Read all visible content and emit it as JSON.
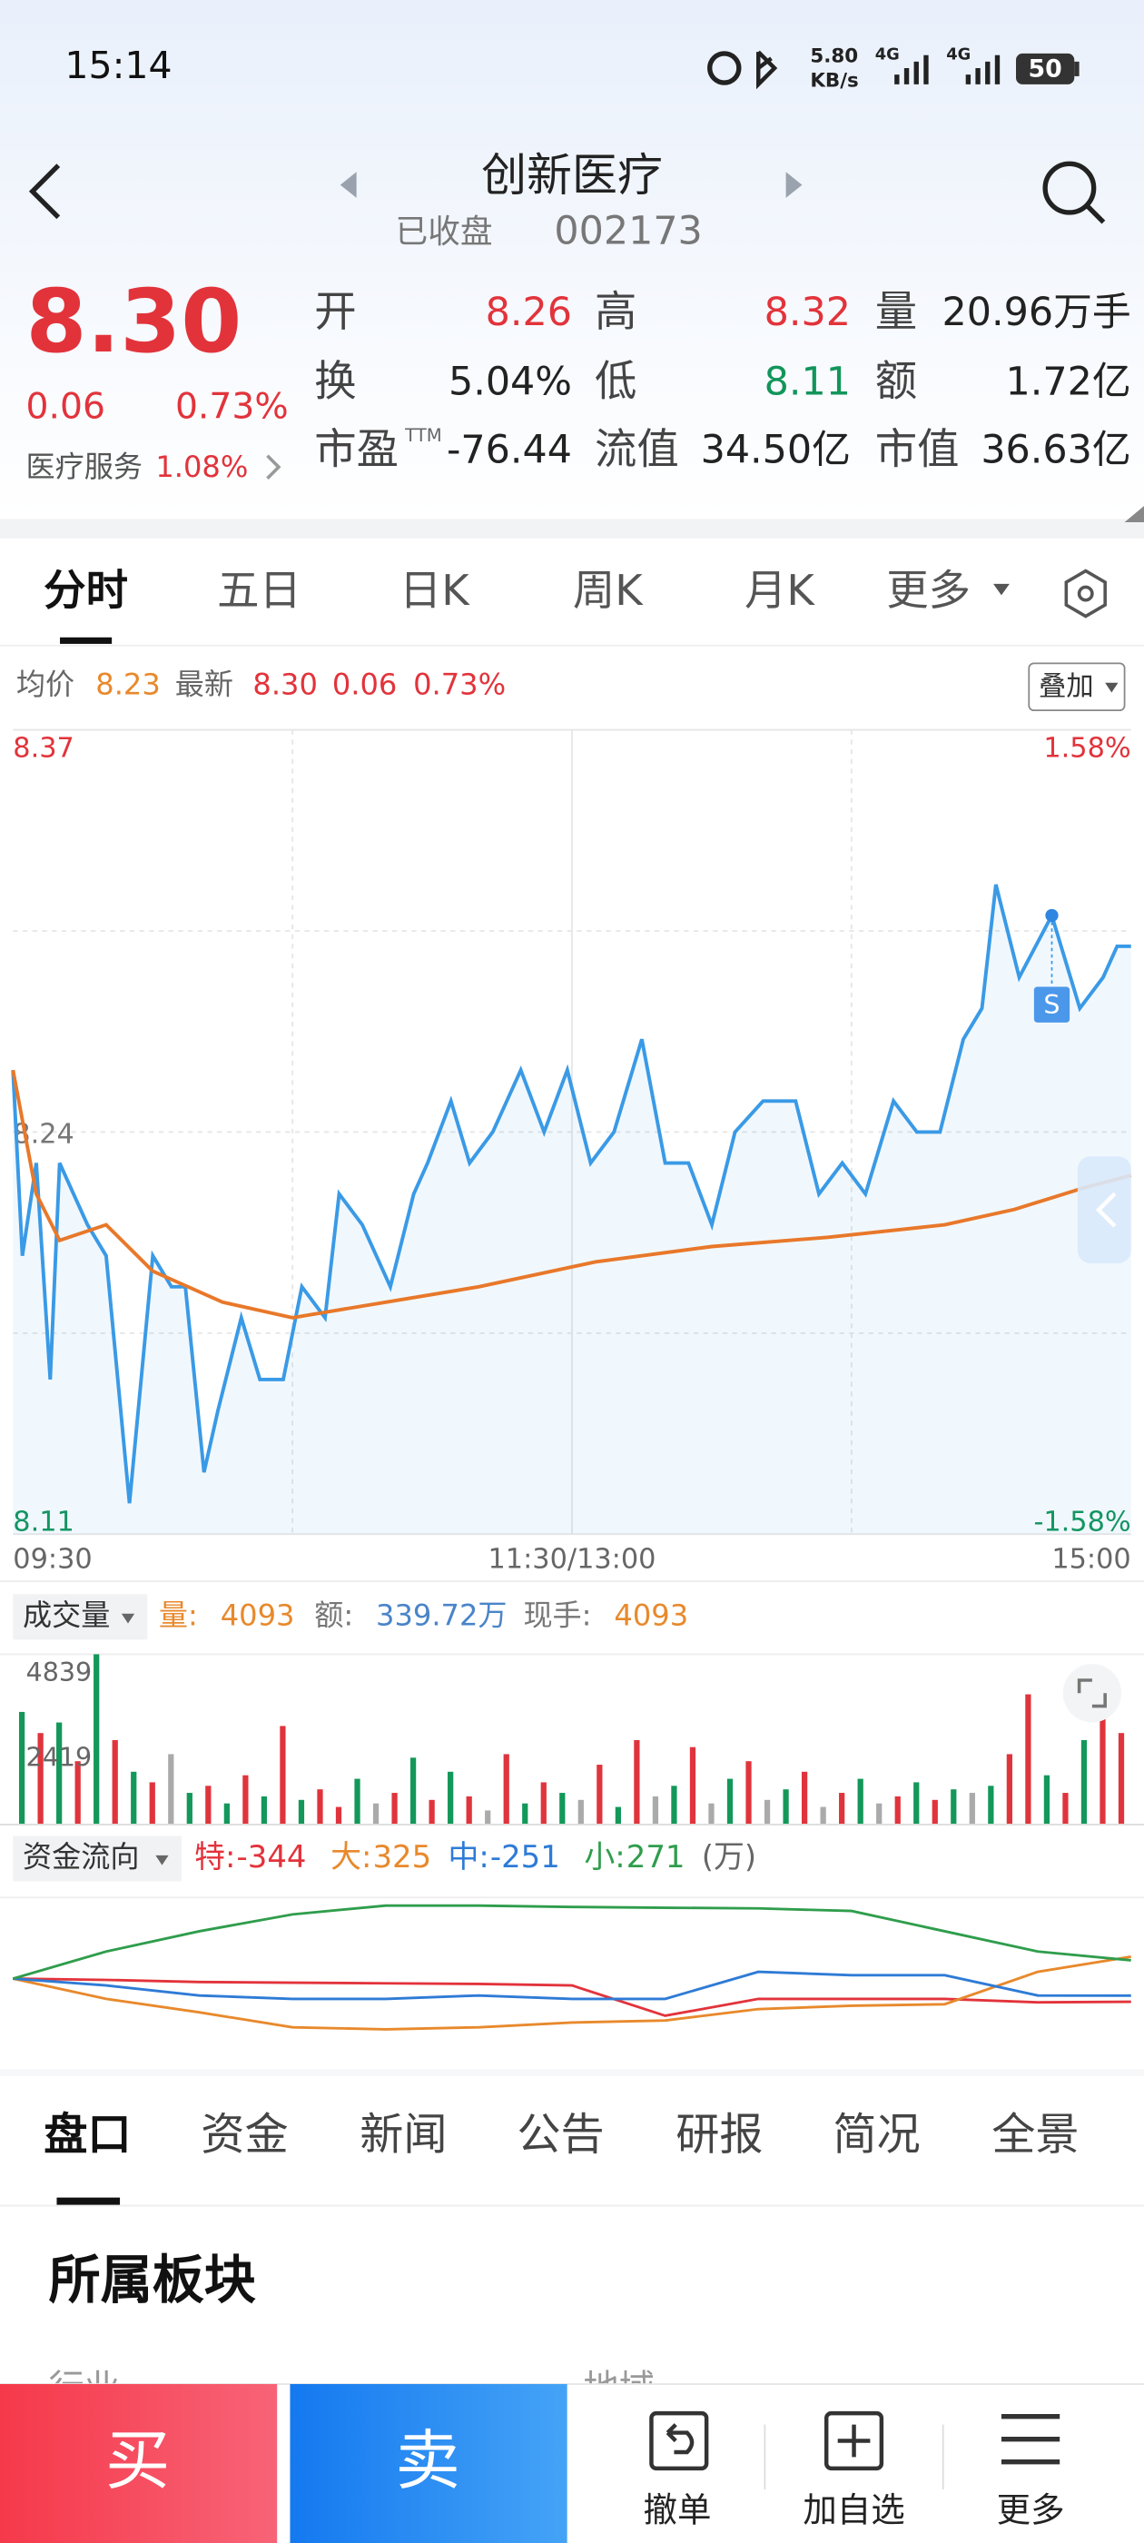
{
  "status_bar": {
    "time": "15:14",
    "speed": "5.80",
    "speed_unit": "KB/s",
    "net1": "4G",
    "net2": "4G",
    "battery": "50"
  },
  "header": {
    "title": "创新医疗",
    "status": "已收盘",
    "code": "002173"
  },
  "quote": {
    "price": "8.30",
    "change": "0.06",
    "change_pct": "0.73%",
    "sector": "医疗服务",
    "sector_pct": "1.08%",
    "stats": [
      [
        {
          "label": "开",
          "value": "8.26",
          "color": "#e2333b"
        },
        {
          "label": "高",
          "value": "8.32",
          "color": "#e2333b"
        },
        {
          "label": "量",
          "value": "20.96万手",
          "color": "#222222"
        }
      ],
      [
        {
          "label": "换",
          "value": "5.04%",
          "color": "#222222"
        },
        {
          "label": "低",
          "value": "8.11",
          "color": "#12955a"
        },
        {
          "label": "额",
          "value": "1.72亿",
          "color": "#222222"
        }
      ],
      [
        {
          "label": "市盈",
          "label_sup": "TTM",
          "value": "-76.44",
          "color": "#222222"
        },
        {
          "label": "流值",
          "value": "34.50亿",
          "color": "#222222"
        },
        {
          "label": "市值",
          "value": "36.63亿",
          "color": "#222222"
        }
      ]
    ]
  },
  "chart_tabs": [
    "分时",
    "五日",
    "日K",
    "周K",
    "月K",
    "更多"
  ],
  "info_row": {
    "avg_label": "均价",
    "avg": "8.23",
    "latest_label": "最新",
    "latest": "8.30",
    "change": "0.06",
    "change_pct": "0.73%",
    "overlay_button": "叠加"
  },
  "chart_data": [
    {
      "type": "line",
      "xlim": [
        0,
        240
      ],
      "ylim": [
        8.11,
        8.37
      ],
      "yticks": [
        8.37,
        8.24,
        8.11
      ],
      "y2lim": [
        -1.58,
        1.58
      ],
      "y2ticks": [
        {
          "value": 1.58,
          "label": "1.58%"
        },
        {
          "value": -1.58,
          "label": "-1.58%"
        }
      ],
      "xticks": [
        {
          "value": 0,
          "label": "09:30"
        },
        {
          "value": 120,
          "label": "11:30/13:00"
        },
        {
          "value": 240,
          "label": "15:00"
        }
      ],
      "grid": true,
      "series": [
        {
          "color": "#3a9ae6",
          "x": [
            0,
            2,
            5,
            8,
            10,
            13,
            16,
            20,
            25,
            30,
            34,
            37,
            41,
            44,
            49,
            53,
            58,
            62,
            67,
            70,
            75,
            81,
            86,
            89,
            94,
            98,
            103,
            109,
            114,
            119,
            124,
            129,
            135,
            140,
            145,
            150,
            155,
            161,
            168,
            173,
            178,
            183,
            189,
            194,
            199,
            204,
            208,
            211,
            216,
            223,
            229,
            234,
            237,
            240
          ],
          "values": [
            8.26,
            8.2,
            8.23,
            8.16,
            8.23,
            8.22,
            8.21,
            8.2,
            8.12,
            8.2,
            8.19,
            8.19,
            8.13,
            8.15,
            8.18,
            8.16,
            8.16,
            8.19,
            8.18,
            8.22,
            8.21,
            8.19,
            8.22,
            8.23,
            8.25,
            8.23,
            8.24,
            8.26,
            8.24,
            8.26,
            8.23,
            8.24,
            8.27,
            8.23,
            8.23,
            8.21,
            8.24,
            8.25,
            8.25,
            8.22,
            8.23,
            8.22,
            8.25,
            8.24,
            8.24,
            8.27,
            8.28,
            8.32,
            8.29,
            8.31,
            8.28,
            8.29,
            8.3,
            8.3
          ]
        },
        {
          "color": "#e8782a",
          "x": [
            0,
            5,
            10,
            20,
            30,
            45,
            60,
            80,
            100,
            125,
            150,
            175,
            200,
            215,
            230,
            240
          ],
          "values": [
            8.26,
            8.22,
            8.205,
            8.21,
            8.195,
            8.185,
            8.18,
            8.185,
            8.19,
            8.198,
            8.203,
            8.206,
            8.21,
            8.215,
            8.222,
            8.226
          ]
        }
      ],
      "annotation": {
        "text": "S",
        "x": 223
      }
    },
    {
      "type": "bar",
      "legend_button": "成交量",
      "items": [
        {
          "label": "量:",
          "value": "4093",
          "label_color": "#e8892c",
          "value_color": "#e8892c"
        },
        {
          "label": "额:",
          "value": "339.72万",
          "label_color": "#777777",
          "value_color": "#4a84c9"
        },
        {
          "label": "现手:",
          "value": "4093",
          "label_color": "#777777",
          "value_color": "#e8892c"
        }
      ],
      "ylim": [
        0,
        4839
      ],
      "yticks": [
        4839,
        2419
      ],
      "values": [
        3200,
        2600,
        2900,
        1800,
        4839,
        2400,
        1500,
        1200,
        2000,
        900,
        1100,
        600,
        1400,
        800,
        2800,
        700,
        1000,
        500,
        1300,
        600,
        900,
        1900,
        700,
        1500,
        800,
        400,
        2000,
        600,
        1200,
        900,
        700,
        1700,
        500,
        2400,
        800,
        1100,
        2200,
        600,
        1300,
        1800,
        700,
        1000,
        1500,
        500,
        900,
        1300,
        600,
        800,
        1200,
        700,
        1000,
        900,
        1100,
        2000,
        3700,
        1400,
        900,
        2400,
        3000,
        2600
      ],
      "bar_colors": [
        "#13985a",
        "#e0343c",
        "#13985a",
        "#e0343c",
        "#13985a",
        "#e0343c",
        "#13985a",
        "#e0343c",
        "#aaaaaa",
        "#13985a",
        "#e0343c",
        "#13985a",
        "#e0343c",
        "#13985a",
        "#e0343c",
        "#13985a",
        "#e0343c",
        "#e0343c",
        "#13985a",
        "#aaaaaa",
        "#e0343c",
        "#13985a",
        "#e0343c",
        "#13985a",
        "#e0343c",
        "#aaaaaa",
        "#e0343c",
        "#13985a",
        "#e0343c",
        "#13985a",
        "#aaaaaa",
        "#e0343c",
        "#13985a",
        "#e0343c",
        "#aaaaaa",
        "#13985a",
        "#e0343c",
        "#aaaaaa",
        "#13985a",
        "#e0343c",
        "#aaaaaa",
        "#13985a",
        "#e0343c",
        "#aaaaaa",
        "#e0343c",
        "#13985a",
        "#aaaaaa",
        "#e0343c",
        "#13985a",
        "#e0343c",
        "#13985a",
        "#aaaaaa",
        "#13985a",
        "#e0343c",
        "#e0343c",
        "#13985a",
        "#e0343c",
        "#13985a",
        "#e0343c",
        "#e0343c"
      ]
    },
    {
      "type": "line",
      "legend_button": "资金流向",
      "unit": "(万)",
      "ylim": [
        -1200,
        1200
      ],
      "x": [
        0,
        20,
        40,
        60,
        80,
        100,
        120,
        140,
        160,
        180,
        200,
        220,
        240
      ],
      "series": [
        {
          "name": "特:",
          "color": "#e2333b",
          "values": [
            0,
            -20,
            -50,
            -60,
            -70,
            -80,
            -100,
            -550,
            -300,
            -300,
            -300,
            -350,
            -344
          ]
        },
        {
          "name": "大:",
          "color": "#e8892c",
          "values": [
            0,
            -300,
            -500,
            -720,
            -750,
            -720,
            -650,
            -620,
            -450,
            -400,
            -380,
            100,
            325
          ]
        },
        {
          "name": "中:",
          "color": "#2e7bd6",
          "values": [
            0,
            -100,
            -250,
            -300,
            -300,
            -250,
            -300,
            -300,
            100,
            50,
            50,
            -250,
            -251
          ]
        },
        {
          "name": "小:",
          "color": "#2f9d4c",
          "values": [
            0,
            400,
            700,
            950,
            1080,
            1080,
            1060,
            1050,
            1040,
            1000,
            700,
            400,
            271
          ]
        }
      ]
    }
  ],
  "detail_tabs": [
    "盘口",
    "资金",
    "新闻",
    "公告",
    "研报",
    "简况",
    "全景"
  ],
  "section": {
    "title": "所属板块",
    "col1": "行业",
    "col2": "地域"
  },
  "bottom_bar": {
    "buy": "买",
    "sell": "卖",
    "actions": [
      "撤单",
      "加自选",
      "更多"
    ]
  }
}
